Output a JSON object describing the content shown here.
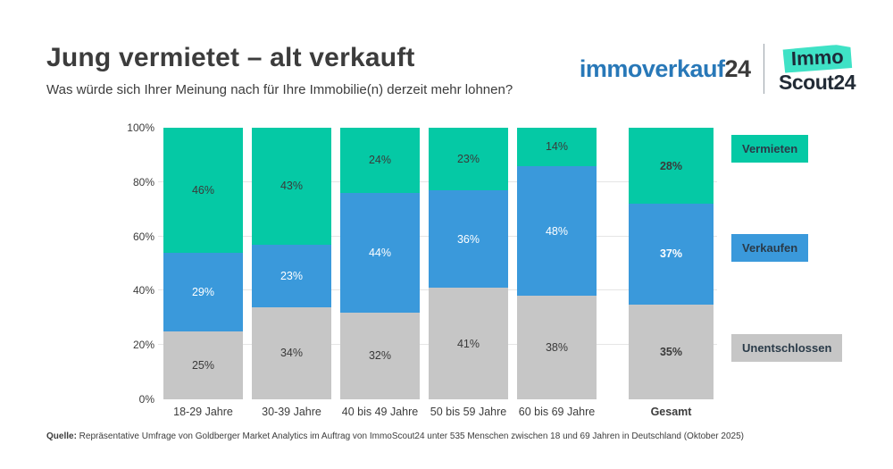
{
  "header": {
    "title": "Jung vermietet – alt verkauft",
    "subtitle": "Was würde sich Ihrer Meinung nach für Ihre Immobilie(n) derzeit mehr lohnen?"
  },
  "logos": {
    "immoverkauf": {
      "name": "immoverkauf",
      "suffix": "24",
      "name_color": "#2878b8",
      "suffix_color": "#3b3b3b"
    },
    "immoscout": {
      "badge": "Immo",
      "scout": "Scout24",
      "badge_color": "#3fe2c6",
      "text_color": "#222b36"
    }
  },
  "chart_data": {
    "type": "bar",
    "stacked": true,
    "categories": [
      "18-29 Jahre",
      "30-39 Jahre",
      "40 bis 49 Jahre",
      "50 bis 59 Jahre",
      "60 bis 69 Jahre",
      "Gesamt"
    ],
    "series": [
      {
        "name": "Vermieten",
        "color": "#05c9a5",
        "label_color": "#3a3a3a",
        "values": [
          46,
          43,
          24,
          23,
          14,
          28
        ]
      },
      {
        "name": "Verkaufen",
        "color": "#3a99db",
        "label_color": "#ffffff",
        "values": [
          29,
          23,
          44,
          36,
          48,
          37
        ]
      },
      {
        "name": "Unentschlossen",
        "color": "#c6c6c6",
        "label_color": "#3a3a3a",
        "values": [
          25,
          34,
          32,
          41,
          38,
          35
        ]
      }
    ],
    "stack_order_bottom_to_top": [
      "Unentschlossen",
      "Verkaufen",
      "Vermieten"
    ],
    "value_suffix": "%",
    "y_ticks": [
      100,
      80,
      60,
      40,
      20,
      0
    ],
    "y_tick_suffix": "%",
    "ylim": [
      0,
      100
    ],
    "grid": true,
    "legend_position": "right",
    "emphasized_category": "Gesamt",
    "title": "Jung vermietet – alt verkauft",
    "xlabel": "",
    "ylabel": ""
  },
  "footer": {
    "source_label": "Quelle:",
    "source_text": " Repräsentative Umfrage von Goldberger Market Analytics im Auftrag von ImmoScout24 unter 535 Menschen zwischen 18 und 69 Jahren in Deutschland (Oktober 2025)"
  }
}
